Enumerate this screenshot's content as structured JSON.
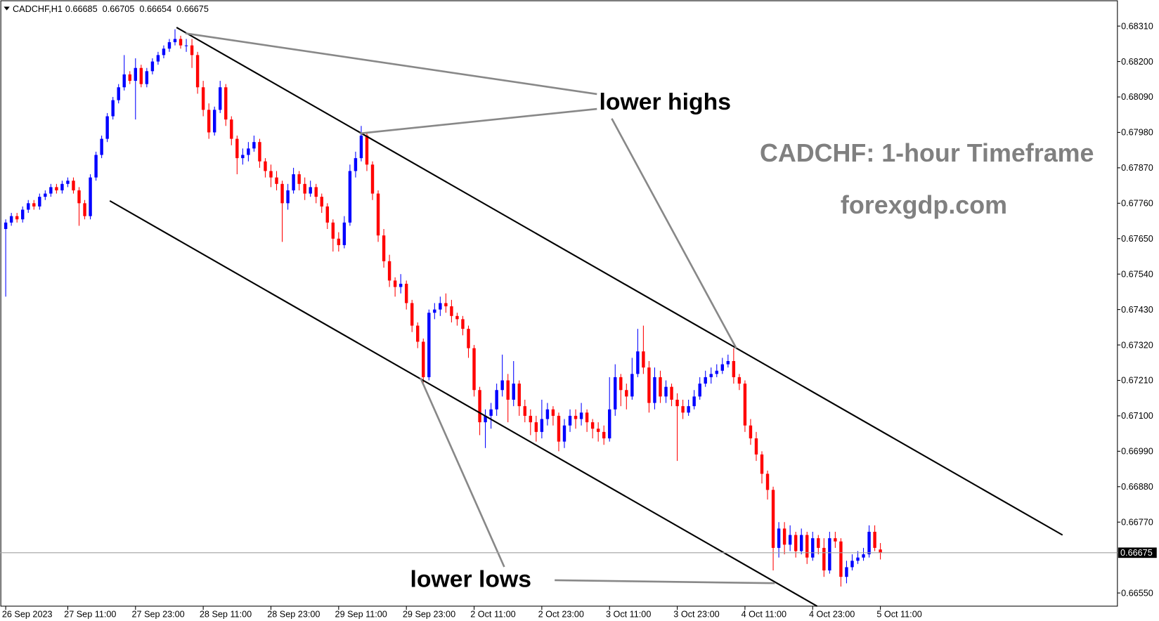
{
  "chart_data": {
    "type": "candlestick",
    "symbol": "CADCHF,H1",
    "up_color": "#0000ff",
    "down_color": "#ff0000",
    "xlim": [
      -1,
      197
    ],
    "ylim": [
      0.66509,
      0.68391
    ],
    "candles": [
      [
        0.6768,
        0.6771,
        0.6747,
        0.677
      ],
      [
        0.677,
        0.6773,
        0.6769,
        0.6772
      ],
      [
        0.6772,
        0.6773,
        0.677,
        0.6771
      ],
      [
        0.6771,
        0.6775,
        0.677,
        0.6774
      ],
      [
        0.6774,
        0.6777,
        0.6773,
        0.6776
      ],
      [
        0.6776,
        0.6777,
        0.6774,
        0.6775
      ],
      [
        0.6775,
        0.6779,
        0.6774,
        0.6778
      ],
      [
        0.6778,
        0.678,
        0.6777,
        0.6779
      ],
      [
        0.6779,
        0.6782,
        0.6778,
        0.6781
      ],
      [
        0.6781,
        0.6782,
        0.6779,
        0.678
      ],
      [
        0.678,
        0.6783,
        0.6779,
        0.6782
      ],
      [
        0.6782,
        0.6784,
        0.6781,
        0.6783
      ],
      [
        0.6783,
        0.6784,
        0.6779,
        0.678
      ],
      [
        0.678,
        0.6781,
        0.6769,
        0.6776
      ],
      [
        0.6776,
        0.6777,
        0.6771,
        0.6772
      ],
      [
        0.6772,
        0.6785,
        0.6771,
        0.6784
      ],
      [
        0.6784,
        0.6792,
        0.6783,
        0.6791
      ],
      [
        0.6791,
        0.6797,
        0.679,
        0.6796
      ],
      [
        0.6796,
        0.6804,
        0.6795,
        0.6803
      ],
      [
        0.6803,
        0.6809,
        0.6802,
        0.6808
      ],
      [
        0.6808,
        0.6813,
        0.6807,
        0.6812
      ],
      [
        0.6812,
        0.6822,
        0.6811,
        0.6816
      ],
      [
        0.6816,
        0.6817,
        0.6813,
        0.6814
      ],
      [
        0.6814,
        0.6821,
        0.6802,
        0.6818
      ],
      [
        0.6818,
        0.6819,
        0.6812,
        0.6813
      ],
      [
        0.6813,
        0.6818,
        0.6812,
        0.6817
      ],
      [
        0.6817,
        0.6821,
        0.6816,
        0.682
      ],
      [
        0.682,
        0.6823,
        0.6819,
        0.6822
      ],
      [
        0.6822,
        0.6825,
        0.6821,
        0.6824
      ],
      [
        0.6824,
        0.6827,
        0.6823,
        0.6826
      ],
      [
        0.6826,
        0.683,
        0.6825,
        0.6827
      ],
      [
        0.6827,
        0.6828,
        0.6824,
        0.6825
      ],
      [
        0.6825,
        0.6827,
        0.6823,
        0.6825
      ],
      [
        0.6825,
        0.6827,
        0.6818,
        0.6822
      ],
      [
        0.6822,
        0.6823,
        0.681,
        0.6812
      ],
      [
        0.6812,
        0.6814,
        0.6803,
        0.6805
      ],
      [
        0.6805,
        0.6807,
        0.6796,
        0.6798
      ],
      [
        0.6798,
        0.6806,
        0.6797,
        0.6805
      ],
      [
        0.6805,
        0.6814,
        0.6804,
        0.6812
      ],
      [
        0.6812,
        0.6813,
        0.68,
        0.6802
      ],
      [
        0.6802,
        0.6803,
        0.6794,
        0.6796
      ],
      [
        0.6796,
        0.6797,
        0.6785,
        0.679
      ],
      [
        0.679,
        0.6793,
        0.6788,
        0.6791
      ],
      [
        0.6791,
        0.6795,
        0.6789,
        0.6793
      ],
      [
        0.6793,
        0.6797,
        0.6792,
        0.6795
      ],
      [
        0.6795,
        0.6796,
        0.6787,
        0.6789
      ],
      [
        0.6789,
        0.679,
        0.6784,
        0.6786
      ],
      [
        0.6786,
        0.6788,
        0.6781,
        0.6784
      ],
      [
        0.6784,
        0.6786,
        0.678,
        0.6782
      ],
      [
        0.6782,
        0.6783,
        0.6764,
        0.6776
      ],
      [
        0.6776,
        0.6782,
        0.6774,
        0.678
      ],
      [
        0.678,
        0.6787,
        0.6779,
        0.6785
      ],
      [
        0.6785,
        0.6786,
        0.678,
        0.6782
      ],
      [
        0.6782,
        0.6784,
        0.6777,
        0.6779
      ],
      [
        0.6779,
        0.6783,
        0.6778,
        0.6781
      ],
      [
        0.6781,
        0.6782,
        0.6776,
        0.6778
      ],
      [
        0.6778,
        0.6779,
        0.6773,
        0.6775
      ],
      [
        0.6775,
        0.6776,
        0.6768,
        0.677
      ],
      [
        0.677,
        0.6771,
        0.6761,
        0.6765
      ],
      [
        0.6765,
        0.6767,
        0.6761,
        0.6763
      ],
      [
        0.6763,
        0.6772,
        0.6762,
        0.677
      ],
      [
        0.677,
        0.6788,
        0.6769,
        0.6786
      ],
      [
        0.6786,
        0.6792,
        0.6784,
        0.679
      ],
      [
        0.679,
        0.68,
        0.6789,
        0.6797
      ],
      [
        0.6797,
        0.6798,
        0.6786,
        0.6788
      ],
      [
        0.6788,
        0.6789,
        0.6777,
        0.6779
      ],
      [
        0.6779,
        0.678,
        0.6764,
        0.6766
      ],
      [
        0.6766,
        0.6768,
        0.6756,
        0.6758
      ],
      [
        0.6758,
        0.676,
        0.675,
        0.6752
      ],
      [
        0.6752,
        0.6753,
        0.6747,
        0.675
      ],
      [
        0.675,
        0.6754,
        0.6748,
        0.6751
      ],
      [
        0.6751,
        0.6752,
        0.6743,
        0.6745
      ],
      [
        0.6745,
        0.6746,
        0.6736,
        0.6738
      ],
      [
        0.6738,
        0.6739,
        0.6731,
        0.6733
      ],
      [
        0.6733,
        0.6734,
        0.672,
        0.6722
      ],
      [
        0.6722,
        0.6743,
        0.6721,
        0.6742
      ],
      [
        0.6742,
        0.6745,
        0.674,
        0.6743
      ],
      [
        0.6743,
        0.6747,
        0.6741,
        0.6745
      ],
      [
        0.6745,
        0.6748,
        0.6742,
        0.6744
      ],
      [
        0.6744,
        0.6746,
        0.6739,
        0.6741
      ],
      [
        0.6741,
        0.6742,
        0.6738,
        0.674
      ],
      [
        0.674,
        0.6741,
        0.6735,
        0.6737
      ],
      [
        0.6737,
        0.6738,
        0.6728,
        0.6731
      ],
      [
        0.6731,
        0.6732,
        0.6716,
        0.6718
      ],
      [
        0.6718,
        0.6719,
        0.6704,
        0.6708
      ],
      [
        0.6708,
        0.6712,
        0.67,
        0.671
      ],
      [
        0.671,
        0.6714,
        0.6706,
        0.6712
      ],
      [
        0.6712,
        0.672,
        0.671,
        0.6718
      ],
      [
        0.6718,
        0.6729,
        0.6716,
        0.6721
      ],
      [
        0.6721,
        0.6723,
        0.6708,
        0.6715
      ],
      [
        0.6715,
        0.6727,
        0.6713,
        0.672
      ],
      [
        0.672,
        0.6721,
        0.671,
        0.6713
      ],
      [
        0.6713,
        0.6715,
        0.6708,
        0.671
      ],
      [
        0.671,
        0.6712,
        0.6704,
        0.6708
      ],
      [
        0.6708,
        0.671,
        0.6702,
        0.6705
      ],
      [
        0.6705,
        0.6715,
        0.6703,
        0.6709
      ],
      [
        0.6709,
        0.6714,
        0.6707,
        0.6712
      ],
      [
        0.6712,
        0.6713,
        0.6707,
        0.671
      ],
      [
        0.671,
        0.6711,
        0.6699,
        0.6702
      ],
      [
        0.6702,
        0.6709,
        0.67,
        0.6707
      ],
      [
        0.6707,
        0.6712,
        0.6705,
        0.671
      ],
      [
        0.671,
        0.6712,
        0.6706,
        0.6709
      ],
      [
        0.6709,
        0.6714,
        0.6707,
        0.6711
      ],
      [
        0.6711,
        0.6712,
        0.6705,
        0.6708
      ],
      [
        0.6708,
        0.6709,
        0.6703,
        0.6706
      ],
      [
        0.6706,
        0.6708,
        0.6702,
        0.6705
      ],
      [
        0.6705,
        0.6707,
        0.6701,
        0.6703
      ],
      [
        0.6703,
        0.6722,
        0.6702,
        0.6712
      ],
      [
        0.6712,
        0.6726,
        0.671,
        0.6722
      ],
      [
        0.6722,
        0.6723,
        0.6713,
        0.6718
      ],
      [
        0.6718,
        0.672,
        0.6712,
        0.6716
      ],
      [
        0.6716,
        0.6728,
        0.6715,
        0.6723
      ],
      [
        0.6723,
        0.6737,
        0.6722,
        0.673
      ],
      [
        0.673,
        0.6738,
        0.6723,
        0.6725
      ],
      [
        0.6725,
        0.6727,
        0.6711,
        0.6714
      ],
      [
        0.6714,
        0.6725,
        0.6712,
        0.6722
      ],
      [
        0.6722,
        0.6724,
        0.6714,
        0.6716
      ],
      [
        0.6716,
        0.6721,
        0.6714,
        0.6719
      ],
      [
        0.6719,
        0.672,
        0.6713,
        0.6715
      ],
      [
        0.6715,
        0.6717,
        0.6696,
        0.6713
      ],
      [
        0.6713,
        0.6715,
        0.6709,
        0.6711
      ],
      [
        0.6711,
        0.6715,
        0.671,
        0.6713
      ],
      [
        0.6713,
        0.6718,
        0.6712,
        0.6716
      ],
      [
        0.6716,
        0.6722,
        0.6715,
        0.672
      ],
      [
        0.672,
        0.6724,
        0.6719,
        0.6722
      ],
      [
        0.6722,
        0.6725,
        0.672,
        0.6723
      ],
      [
        0.6723,
        0.6726,
        0.6722,
        0.6724
      ],
      [
        0.6724,
        0.6728,
        0.6723,
        0.6726
      ],
      [
        0.6726,
        0.6729,
        0.6725,
        0.6727
      ],
      [
        0.6727,
        0.6731,
        0.672,
        0.6722
      ],
      [
        0.6722,
        0.6723,
        0.6718,
        0.672
      ],
      [
        0.672,
        0.6721,
        0.6705,
        0.6707
      ],
      [
        0.6707,
        0.6709,
        0.6701,
        0.6703
      ],
      [
        0.6703,
        0.6705,
        0.6696,
        0.6698
      ],
      [
        0.6698,
        0.6699,
        0.6689,
        0.6692
      ],
      [
        0.6692,
        0.6693,
        0.6684,
        0.6687
      ],
      [
        0.6687,
        0.6688,
        0.6662,
        0.6669
      ],
      [
        0.6669,
        0.6677,
        0.6666,
        0.6675
      ],
      [
        0.6675,
        0.6677,
        0.6667,
        0.667
      ],
      [
        0.667,
        0.6676,
        0.6668,
        0.6673
      ],
      [
        0.6673,
        0.6674,
        0.6666,
        0.6668
      ],
      [
        0.6668,
        0.6675,
        0.6667,
        0.6673
      ],
      [
        0.6673,
        0.6674,
        0.6664,
        0.6666
      ],
      [
        0.6666,
        0.6674,
        0.6665,
        0.6672
      ],
      [
        0.6672,
        0.6673,
        0.6667,
        0.6669
      ],
      [
        0.6669,
        0.6672,
        0.666,
        0.6662
      ],
      [
        0.6662,
        0.6674,
        0.6661,
        0.6672
      ],
      [
        0.6672,
        0.6674,
        0.6669,
        0.6671
      ],
      [
        0.6671,
        0.6672,
        0.6657,
        0.666
      ],
      [
        0.666,
        0.6665,
        0.6658,
        0.6663
      ],
      [
        0.6663,
        0.6667,
        0.6662,
        0.6665
      ],
      [
        0.6665,
        0.6668,
        0.6664,
        0.6666
      ],
      [
        0.6666,
        0.6669,
        0.6665,
        0.6667
      ],
      [
        0.6667,
        0.6676,
        0.6666,
        0.6674
      ],
      [
        0.6674,
        0.6676,
        0.6668,
        0.6669
      ],
      [
        0.66685,
        0.66705,
        0.66654,
        0.66675
      ]
    ],
    "xticks": [
      {
        "value": 0,
        "label": "26 Sep 2023"
      },
      {
        "value": 11,
        "label": "27 Sep 11:00"
      },
      {
        "value": 23,
        "label": "27 Sep 23:00"
      },
      {
        "value": 35,
        "label": "28 Sep 11:00"
      },
      {
        "value": 47,
        "label": "28 Sep 23:00"
      },
      {
        "value": 59,
        "label": "29 Sep 11:00"
      },
      {
        "value": 71,
        "label": "29 Sep 23:00"
      },
      {
        "value": 83,
        "label": "2 Oct 11:00"
      },
      {
        "value": 95,
        "label": "2 Oct 23:00"
      },
      {
        "value": 107,
        "label": "3 Oct 11:00"
      },
      {
        "value": 119,
        "label": "3 Oct 23:00"
      },
      {
        "value": 131,
        "label": "4 Oct 11:00"
      },
      {
        "value": 143,
        "label": "4 Oct 23:00"
      },
      {
        "value": 155,
        "label": "5 Oct 11:00"
      }
    ],
    "yticks": [
      {
        "value": 0.6831,
        "label": "0.68310"
      },
      {
        "value": 0.682,
        "label": "0.68200"
      },
      {
        "value": 0.6809,
        "label": "0.68090"
      },
      {
        "value": 0.6798,
        "label": "0.67980"
      },
      {
        "value": 0.6787,
        "label": "0.67870"
      },
      {
        "value": 0.6776,
        "label": "0.67760"
      },
      {
        "value": 0.6765,
        "label": "0.67650"
      },
      {
        "value": 0.6754,
        "label": "0.67540"
      },
      {
        "value": 0.6743,
        "label": "0.67430"
      },
      {
        "value": 0.6732,
        "label": "0.67320"
      },
      {
        "value": 0.6721,
        "label": "0.67210"
      },
      {
        "value": 0.671,
        "label": "0.67100"
      },
      {
        "value": 0.6699,
        "label": "0.66990"
      },
      {
        "value": 0.6688,
        "label": "0.66880"
      },
      {
        "value": 0.6677,
        "label": "0.66770"
      },
      {
        "value": 0.6655,
        "label": "0.66550"
      }
    ],
    "annotations": [
      "lower highs",
      "lower lows",
      "CADCHF: 1-hour Timeframe",
      "forexgdp.com"
    ]
  }
}
